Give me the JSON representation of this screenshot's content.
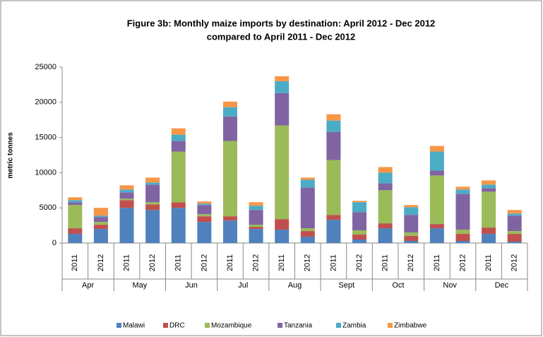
{
  "chart_data": {
    "type": "stacked_bar",
    "title": "Figure  3b: Monthly maize imports by destination: April  2012 - Dec 2012",
    "subtitle": "compared to April 2011 - Dec 2012",
    "y_axis_label": "metric tonnes",
    "categories": [
      "2011",
      "2012",
      "2011",
      "2012",
      "2011",
      "2012",
      "2011",
      "2012",
      "2011",
      "2012",
      "2011",
      "2012",
      "2011",
      "2012",
      "2011",
      "2012",
      "2011",
      "2012"
    ],
    "groups": [
      "Apr",
      "May",
      "Jun",
      "Jul",
      "Aug",
      "Sept",
      "Oct",
      "Nov",
      "Dec"
    ],
    "ylim": [
      0,
      25000
    ],
    "yticks": [
      0,
      5000,
      10000,
      15000,
      20000,
      25000
    ],
    "grid": false,
    "legend": "bottom",
    "series": [
      {
        "name": "Malawi",
        "color": "#4f81bd",
        "values": [
          1300,
          2000,
          5000,
          4700,
          5000,
          3000,
          3200,
          2000,
          1900,
          900,
          3300,
          500,
          2100,
          300,
          2100,
          300,
          1300,
          200
        ]
      },
      {
        "name": "DRC",
        "color": "#c0504d",
        "values": [
          800,
          600,
          1100,
          800,
          800,
          800,
          600,
          300,
          1500,
          800,
          700,
          700,
          700,
          700,
          600,
          1000,
          900,
          1100
        ]
      },
      {
        "name": "Mozambique",
        "color": "#9bbb59",
        "values": [
          3300,
          400,
          200,
          300,
          7200,
          300,
          10700,
          300,
          13300,
          400,
          7800,
          600,
          4700,
          500,
          6900,
          600,
          5100,
          400
        ]
      },
      {
        "name": "Tanzania",
        "color": "#8064a2",
        "values": [
          400,
          700,
          900,
          2500,
          1500,
          1300,
          3500,
          2100,
          4600,
          5800,
          4000,
          2600,
          1000,
          2500,
          700,
          5100,
          500,
          2200
        ]
      },
      {
        "name": "Zambia",
        "color": "#4bacc6",
        "values": [
          300,
          200,
          400,
          300,
          900,
          200,
          1300,
          600,
          1700,
          1100,
          1600,
          1400,
          1500,
          1100,
          2700,
          600,
          500,
          300
        ]
      },
      {
        "name": "Zimbabwe",
        "color": "#f79646",
        "values": [
          400,
          1100,
          600,
          700,
          900,
          300,
          800,
          500,
          700,
          300,
          900,
          200,
          800,
          300,
          800,
          400,
          600,
          500
        ]
      }
    ]
  }
}
